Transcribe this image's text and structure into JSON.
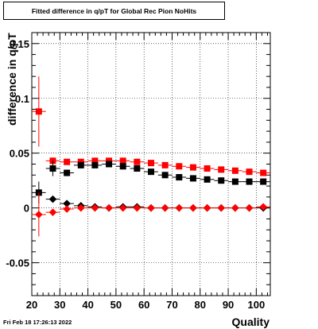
{
  "title": "Fitted difference in q/pT for Global Rec Pion NoHits",
  "footer_timestamp": "Fri Feb 18 17:26:13 2022",
  "chart_data": {
    "type": "scatter",
    "title": "Fitted difference in q/pT for Global Rec Pion NoHits",
    "xlabel": "Quality",
    "ylabel": "difference in q/pT",
    "xlim": [
      20,
      105
    ],
    "ylim": [
      -0.08,
      0.16
    ],
    "grid": true,
    "x_ticks": [
      20,
      30,
      40,
      50,
      60,
      70,
      80,
      90,
      100
    ],
    "x_tick_labels": [
      "20",
      "30",
      "40",
      "50",
      "60",
      "70",
      "80",
      "90",
      "100"
    ],
    "y_ticks": [
      -0.05,
      0,
      0.05,
      0.1,
      0.15
    ],
    "y_tick_labels": [
      "-0.05",
      "0",
      "0.05",
      "0.1",
      "0.15"
    ],
    "colors": {
      "black": "#000000",
      "red": "#ff0000"
    },
    "series": [
      {
        "marker": "square",
        "color": "#ff0000",
        "points": [
          {
            "x": 22.5,
            "y": 0.088,
            "err": 0.032
          },
          {
            "x": 27.5,
            "y": 0.043,
            "err": 0.003
          },
          {
            "x": 32.5,
            "y": 0.042,
            "err": 0.002
          },
          {
            "x": 37.5,
            "y": 0.042,
            "err": 0.002
          },
          {
            "x": 42.5,
            "y": 0.043,
            "err": 0.002
          },
          {
            "x": 47.5,
            "y": 0.043,
            "err": 0.002
          },
          {
            "x": 52.5,
            "y": 0.043,
            "err": 0.002
          },
          {
            "x": 57.5,
            "y": 0.042,
            "err": 0.002
          },
          {
            "x": 62.5,
            "y": 0.041,
            "err": 0.002
          },
          {
            "x": 67.5,
            "y": 0.039,
            "err": 0.002
          },
          {
            "x": 72.5,
            "y": 0.038,
            "err": 0.002
          },
          {
            "x": 77.5,
            "y": 0.037,
            "err": 0.002
          },
          {
            "x": 82.5,
            "y": 0.036,
            "err": 0.002
          },
          {
            "x": 87.5,
            "y": 0.035,
            "err": 0.002
          },
          {
            "x": 92.5,
            "y": 0.034,
            "err": 0.002
          },
          {
            "x": 97.5,
            "y": 0.033,
            "err": 0.002
          },
          {
            "x": 102.5,
            "y": 0.032,
            "err": 0.002
          }
        ]
      },
      {
        "marker": "square",
        "color": "#000000",
        "points": [
          {
            "x": 22.5,
            "y": 0.014,
            "err": 0.01
          },
          {
            "x": 27.5,
            "y": 0.036,
            "err": 0.007
          },
          {
            "x": 32.5,
            "y": 0.032,
            "err": 0.003
          },
          {
            "x": 37.5,
            "y": 0.039,
            "err": 0.003
          },
          {
            "x": 42.5,
            "y": 0.039,
            "err": 0.002
          },
          {
            "x": 47.5,
            "y": 0.04,
            "err": 0.002
          },
          {
            "x": 52.5,
            "y": 0.038,
            "err": 0.002
          },
          {
            "x": 57.5,
            "y": 0.036,
            "err": 0.002
          },
          {
            "x": 62.5,
            "y": 0.033,
            "err": 0.002
          },
          {
            "x": 67.5,
            "y": 0.03,
            "err": 0.002
          },
          {
            "x": 72.5,
            "y": 0.028,
            "err": 0.002
          },
          {
            "x": 77.5,
            "y": 0.027,
            "err": 0.002
          },
          {
            "x": 82.5,
            "y": 0.026,
            "err": 0.002
          },
          {
            "x": 87.5,
            "y": 0.025,
            "err": 0.002
          },
          {
            "x": 92.5,
            "y": 0.024,
            "err": 0.002
          },
          {
            "x": 97.5,
            "y": 0.024,
            "err": 0.002
          },
          {
            "x": 102.5,
            "y": 0.024,
            "err": 0.002
          }
        ]
      },
      {
        "marker": "diamond",
        "color": "#000000",
        "points": [
          {
            "x": 27.5,
            "y": 0.008,
            "err": 0.002
          },
          {
            "x": 32.5,
            "y": 0.004,
            "err": 0.002
          },
          {
            "x": 37.5,
            "y": 0.002,
            "err": 0.001
          },
          {
            "x": 42.5,
            "y": 0.001,
            "err": 0.001
          },
          {
            "x": 47.5,
            "y": 0.0,
            "err": 0.001
          },
          {
            "x": 52.5,
            "y": 0.001,
            "err": 0.001
          },
          {
            "x": 57.5,
            "y": 0.001,
            "err": 0.001
          },
          {
            "x": 62.5,
            "y": 0.0,
            "err": 0.001
          },
          {
            "x": 67.5,
            "y": 0.0,
            "err": 0.001
          },
          {
            "x": 72.5,
            "y": 0.0,
            "err": 0.001
          },
          {
            "x": 77.5,
            "y": 0.0,
            "err": 0.001
          },
          {
            "x": 82.5,
            "y": 0.0,
            "err": 0.001
          },
          {
            "x": 87.5,
            "y": 0.0,
            "err": 0.001
          },
          {
            "x": 92.5,
            "y": 0.0,
            "err": 0.001
          },
          {
            "x": 97.5,
            "y": 0.0,
            "err": 0.001
          },
          {
            "x": 102.5,
            "y": 0.0,
            "err": 0.001
          }
        ]
      },
      {
        "marker": "diamond",
        "color": "#ff0000",
        "points": [
          {
            "x": 22.5,
            "y": -0.006,
            "err": 0.02
          },
          {
            "x": 27.5,
            "y": -0.004,
            "err": 0.003
          },
          {
            "x": 32.5,
            "y": -0.001,
            "err": 0.002
          },
          {
            "x": 37.5,
            "y": 0.0,
            "err": 0.001
          },
          {
            "x": 42.5,
            "y": 0.0,
            "err": 0.001
          },
          {
            "x": 47.5,
            "y": 0.0,
            "err": 0.001
          },
          {
            "x": 52.5,
            "y": 0.0,
            "err": 0.001
          },
          {
            "x": 57.5,
            "y": 0.0,
            "err": 0.001
          },
          {
            "x": 62.5,
            "y": 0.0,
            "err": 0.001
          },
          {
            "x": 67.5,
            "y": 0.0,
            "err": 0.001
          },
          {
            "x": 72.5,
            "y": 0.0,
            "err": 0.001
          },
          {
            "x": 77.5,
            "y": 0.0,
            "err": 0.001
          },
          {
            "x": 82.5,
            "y": 0.0,
            "err": 0.001
          },
          {
            "x": 87.5,
            "y": 0.0,
            "err": 0.001
          },
          {
            "x": 92.5,
            "y": 0.0,
            "err": 0.001
          },
          {
            "x": 97.5,
            "y": 0.0,
            "err": 0.001
          },
          {
            "x": 102.5,
            "y": 0.001,
            "err": 0.001
          }
        ]
      }
    ]
  }
}
